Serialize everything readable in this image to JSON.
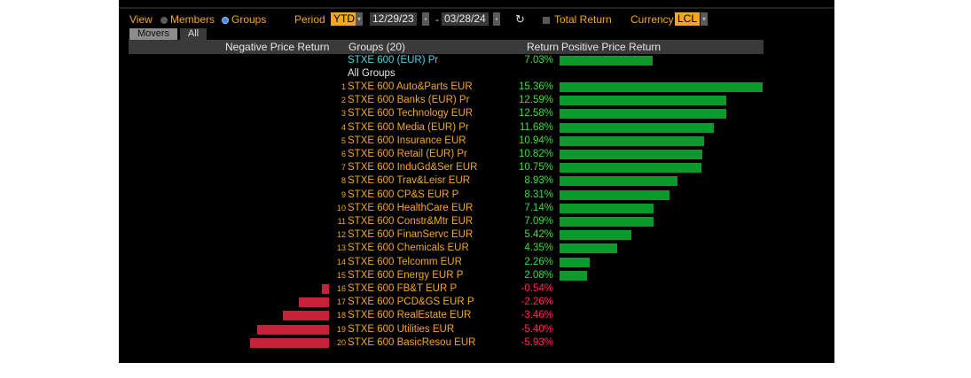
{
  "toolbar": {
    "view_label": "View",
    "members_label": "Members",
    "groups_label": "Groups",
    "period_label": "Period",
    "period_value": "YTD",
    "date_start": "12/29/23",
    "date_sep": "-",
    "date_end": "03/28/24",
    "refresh_icon": "↻",
    "total_return_label": "Total Return",
    "currency_label": "Currency",
    "currency_value": "LCL"
  },
  "tabs": {
    "movers": "Movers",
    "all": "All"
  },
  "header": {
    "negative": "Negative Price Return",
    "groups": "Groups (20)",
    "return": "Return",
    "positive": "Positive Price Return"
  },
  "benchmark": {
    "name": "STXE 600 (EUR) Pr",
    "value": "7.03%",
    "return": 7.03
  },
  "all_groups_label": "All Groups",
  "groups": [
    {
      "num": "1",
      "name": "STXE 600 Auto&Parts EUR",
      "value": "15.36%",
      "return": 15.36
    },
    {
      "num": "2",
      "name": "STXE 600 Banks (EUR) Pr",
      "value": "12.59%",
      "return": 12.59
    },
    {
      "num": "3",
      "name": "STXE 600 Technology EUR",
      "value": "12.58%",
      "return": 12.58
    },
    {
      "num": "4",
      "name": "STXE 600 Media (EUR) Pr",
      "value": "11.68%",
      "return": 11.68
    },
    {
      "num": "5",
      "name": "STXE 600 Insurance EUR",
      "value": "10.94%",
      "return": 10.94
    },
    {
      "num": "6",
      "name": "STXE 600 Retail (EUR) Pr",
      "value": "10.82%",
      "return": 10.82
    },
    {
      "num": "7",
      "name": "STXE 600 InduGd&Ser EUR",
      "value": "10.75%",
      "return": 10.75
    },
    {
      "num": "8",
      "name": "STXE 600 Trav&Leisr EUR",
      "value": "8.93%",
      "return": 8.93
    },
    {
      "num": "9",
      "name": "STXE 600 CP&S EUR P",
      "value": "8.31%",
      "return": 8.31
    },
    {
      "num": "10",
      "name": "STXE 600 HealthCare EUR",
      "value": "7.14%",
      "return": 7.14
    },
    {
      "num": "11",
      "name": "STXE 600 Constr&Mtr EUR",
      "value": "7.09%",
      "return": 7.09
    },
    {
      "num": "12",
      "name": "STXE 600 FinanServc EUR",
      "value": "5.42%",
      "return": 5.42
    },
    {
      "num": "13",
      "name": "STXE 600 Chemicals EUR",
      "value": "4.35%",
      "return": 4.35
    },
    {
      "num": "14",
      "name": "STXE 600 Telcomm EUR",
      "value": "2.26%",
      "return": 2.26
    },
    {
      "num": "15",
      "name": "STXE 600 Energy EUR P",
      "value": "2.08%",
      "return": 2.08
    },
    {
      "num": "16",
      "name": "STXE 600 FB&T EUR P",
      "value": "-0.54%",
      "return": -0.54
    },
    {
      "num": "17",
      "name": "STXE 600 PCD&GS EUR P",
      "value": "-2.26%",
      "return": -2.26
    },
    {
      "num": "18",
      "name": "STXE 600 RealEstate EUR",
      "value": "-3.46%",
      "return": -3.46
    },
    {
      "num": "19",
      "name": "STXE 600 Utilities EUR",
      "value": "-5.40%",
      "return": -5.4
    },
    {
      "num": "20",
      "name": "STXE 600 BasicResou EUR",
      "value": "-5.93%",
      "return": -5.93
    }
  ],
  "colors": {
    "accent": "#f5a623",
    "positive_text": "#3ddc3d",
    "negative_text": "#ff2a55",
    "positive_bar": "#0d9a2c",
    "negative_bar": "#c8223b",
    "benchmark_text": "#4fd3e8"
  }
}
